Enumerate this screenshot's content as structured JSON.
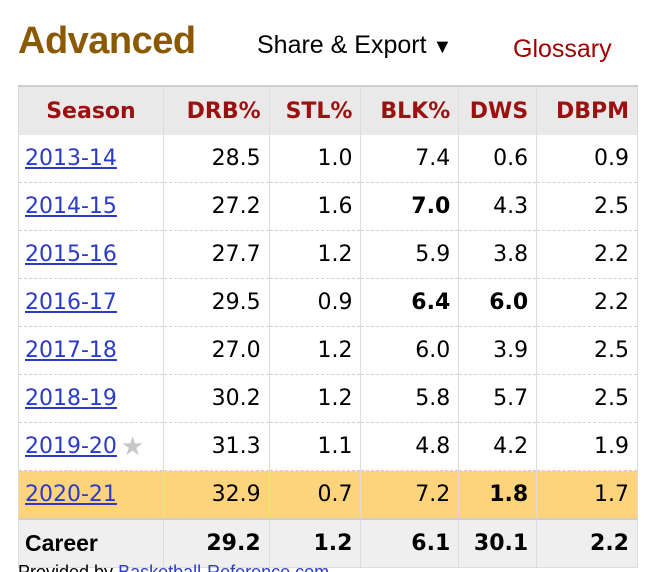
{
  "header": {
    "title": "Advanced",
    "share_label": "Share & Export",
    "share_caret": "▼",
    "glossary_label": "Glossary"
  },
  "table": {
    "columns": [
      "Season",
      "DRB%",
      "STL%",
      "BLK%",
      "DWS",
      "DBPM"
    ],
    "rows": [
      {
        "season": "2013-14",
        "drb": "28.5",
        "stl": "1.0",
        "blk": "7.4",
        "dws": "0.6",
        "dbpm": "0.9",
        "star": false,
        "highlight": false,
        "bold": []
      },
      {
        "season": "2014-15",
        "drb": "27.2",
        "stl": "1.6",
        "blk": "7.0",
        "dws": "4.3",
        "dbpm": "2.5",
        "star": false,
        "highlight": false,
        "bold": [
          "blk"
        ]
      },
      {
        "season": "2015-16",
        "drb": "27.7",
        "stl": "1.2",
        "blk": "5.9",
        "dws": "3.8",
        "dbpm": "2.2",
        "star": false,
        "highlight": false,
        "bold": []
      },
      {
        "season": "2016-17",
        "drb": "29.5",
        "stl": "0.9",
        "blk": "6.4",
        "dws": "6.0",
        "dbpm": "2.2",
        "star": false,
        "highlight": false,
        "bold": [
          "blk",
          "dws"
        ]
      },
      {
        "season": "2017-18",
        "drb": "27.0",
        "stl": "1.2",
        "blk": "6.0",
        "dws": "3.9",
        "dbpm": "2.5",
        "star": false,
        "highlight": false,
        "bold": []
      },
      {
        "season": "2018-19",
        "drb": "30.2",
        "stl": "1.2",
        "blk": "5.8",
        "dws": "5.7",
        "dbpm": "2.5",
        "star": false,
        "highlight": false,
        "bold": []
      },
      {
        "season": "2019-20",
        "drb": "31.3",
        "stl": "1.1",
        "blk": "4.8",
        "dws": "4.2",
        "dbpm": "1.9",
        "star": true,
        "highlight": false,
        "bold": []
      },
      {
        "season": "2020-21",
        "drb": "32.9",
        "stl": "0.7",
        "blk": "7.2",
        "dws": "1.8",
        "dbpm": "1.7",
        "star": false,
        "highlight": true,
        "bold": [
          "dws"
        ]
      }
    ],
    "career": {
      "label": "Career",
      "drb": "29.2",
      "stl": "1.2",
      "blk": "6.1",
      "dws": "30.1",
      "dbpm": "2.2"
    }
  },
  "footer": {
    "prefix": "Provided by ",
    "link": "Basketball-Reference.com"
  },
  "colors": {
    "title": "#8b5a00",
    "header_text": "#9c1010",
    "link": "#2a3cc7",
    "highlight": "#fdd47c",
    "glossary": "#a00000"
  },
  "icons": {
    "star": "star-icon",
    "caret": "caret-down-icon"
  }
}
